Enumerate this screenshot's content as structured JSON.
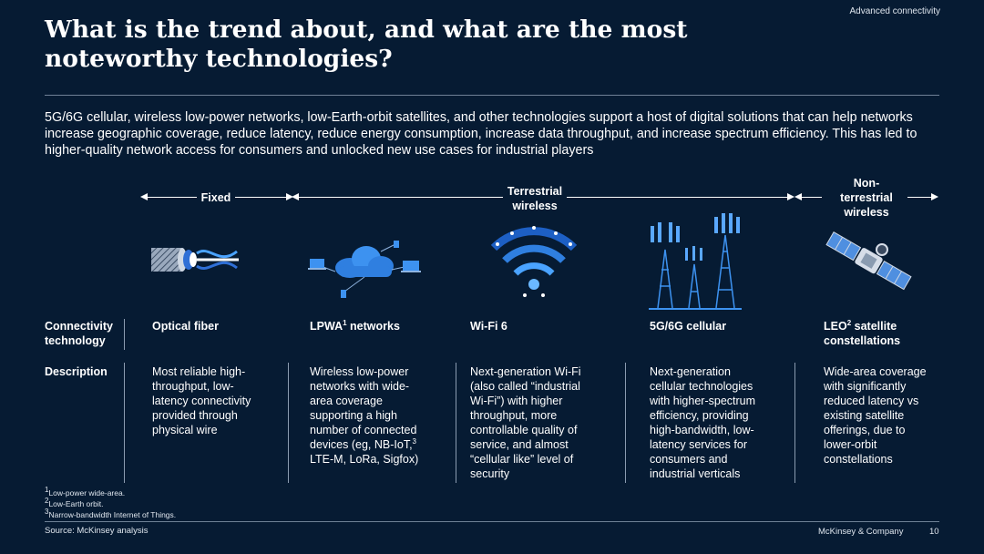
{
  "section_tag": "Advanced connectivity",
  "title": "What is the trend about, and what are the most noteworthy technologies?",
  "intro": "5G/6G cellular, wireless low-power networks, low-Earth-orbit satellites, and other technologies support a host of digital solutions that can help networks increase geographic coverage, reduce latency, reduce energy consumption, increase data throughput, and increase spectrum efficiency. This has led to higher-quality network access for consumers and unlocked new use cases for industrial players",
  "categories": {
    "fixed": "Fixed",
    "terrestrial_line1": "Terrestrial",
    "terrestrial_line2": "wireless",
    "nonterrestrial_line1": "Non-",
    "nonterrestrial_line2": "terrestrial",
    "nonterrestrial_line3": "wireless"
  },
  "row_headers": {
    "tech_line1": "Connectivity",
    "tech_line2": "technology",
    "description": "Description"
  },
  "technologies": [
    {
      "name": "Optical fiber",
      "sup": "",
      "name_suffix": "",
      "icon": "optical-fiber-icon",
      "desc": [
        "Most reliable high-",
        "throughput, low-",
        "latency connectivity",
        "provided through",
        "physical wire"
      ]
    },
    {
      "name": "LPWA",
      "sup": "1",
      "name_suffix": " networks",
      "icon": "lpwa-network-icon",
      "desc": [
        "Wireless low-power",
        "networks with wide-",
        "area coverage",
        "supporting a high",
        "number of connected",
        "devices (eg, NB-IoT,",
        "LTE-M, LoRa, Sigfox)"
      ],
      "desc_sup_line": 5,
      "desc_sup": "3"
    },
    {
      "name": "Wi-Fi 6",
      "sup": "",
      "name_suffix": "",
      "icon": "wifi-icon",
      "desc": [
        "Next-generation Wi-Fi",
        "(also called “industrial",
        "Wi-Fi”) with higher",
        "throughput, more",
        "controllable quality of",
        "service, and almost",
        "“cellular like” level of",
        "security"
      ]
    },
    {
      "name": "5G/6G cellular",
      "sup": "",
      "name_suffix": "",
      "icon": "cell-tower-icon",
      "desc": [
        "Next-generation",
        "cellular technologies",
        "with higher-spectrum",
        "efficiency, providing",
        "high-bandwidth, low-",
        "latency services for",
        "consumers and",
        "industrial verticals"
      ]
    },
    {
      "name": "LEO",
      "sup": "2",
      "name_suffix": " satellite",
      "name_line2": "constellations",
      "icon": "satellite-icon",
      "desc": [
        "Wide-area coverage",
        "with significantly",
        "reduced latency vs",
        "existing satellite",
        "offerings, due to",
        "lower-orbit",
        "constellations"
      ]
    }
  ],
  "footnotes": [
    {
      "sup": "1",
      "text": "Low-power wide-area."
    },
    {
      "sup": "2",
      "text": "Low-Earth orbit."
    },
    {
      "sup": "3",
      "text": "Narrow-bandwidth Internet of Things."
    }
  ],
  "source": "Source: McKinsey analysis",
  "brand": "McKinsey & Company",
  "page_number": "10"
}
